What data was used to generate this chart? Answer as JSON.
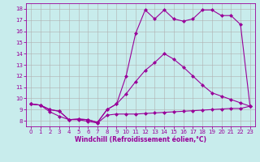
{
  "xlabel": "Windchill (Refroidissement éolien,°C)",
  "background_color": "#c8ecec",
  "line_color": "#990099",
  "xlim": [
    -0.5,
    23.5
  ],
  "ylim": [
    7.5,
    18.5
  ],
  "xticks": [
    0,
    1,
    2,
    3,
    4,
    5,
    6,
    7,
    8,
    9,
    10,
    11,
    12,
    13,
    14,
    15,
    16,
    17,
    18,
    19,
    20,
    21,
    22,
    23
  ],
  "yticks": [
    8,
    9,
    10,
    11,
    12,
    13,
    14,
    15,
    16,
    17,
    18
  ],
  "line1_x": [
    0,
    1,
    2,
    3,
    4,
    5,
    6,
    7,
    8,
    9,
    10,
    11,
    12,
    13,
    14,
    15,
    16,
    17,
    18,
    19,
    20,
    21,
    22,
    23
  ],
  "line1_y": [
    9.5,
    9.4,
    8.8,
    8.4,
    8.1,
    8.1,
    7.95,
    7.8,
    8.5,
    8.6,
    8.6,
    8.6,
    8.65,
    8.7,
    8.75,
    8.8,
    8.85,
    8.9,
    8.95,
    9.0,
    9.05,
    9.1,
    9.1,
    9.3
  ],
  "line2_x": [
    0,
    1,
    2,
    3,
    4,
    5,
    6,
    7,
    8,
    9,
    10,
    11,
    12,
    13,
    14,
    15,
    16,
    17,
    18,
    19,
    20,
    21,
    22,
    23
  ],
  "line2_y": [
    9.5,
    9.4,
    9.0,
    8.85,
    8.1,
    8.15,
    8.1,
    7.85,
    9.0,
    9.5,
    10.4,
    11.5,
    12.5,
    13.2,
    14.0,
    13.5,
    12.8,
    12.0,
    11.2,
    10.5,
    10.2,
    9.9,
    9.6,
    9.3
  ],
  "line3_x": [
    0,
    1,
    2,
    3,
    4,
    5,
    6,
    7,
    8,
    9,
    10,
    11,
    12,
    13,
    14,
    15,
    16,
    17,
    18,
    19,
    20,
    21,
    22,
    23
  ],
  "line3_y": [
    9.5,
    9.4,
    9.0,
    8.85,
    8.1,
    8.15,
    8.1,
    7.85,
    9.0,
    9.5,
    12.0,
    15.8,
    17.9,
    17.1,
    17.9,
    17.1,
    16.9,
    17.1,
    17.9,
    17.9,
    17.4,
    17.4,
    16.6,
    9.3
  ],
  "grid_color": "#b0b0b0",
  "marker": "D",
  "markersize": 2.5,
  "linewidth": 0.8,
  "tick_fontsize": 5.0,
  "xlabel_fontsize": 5.5
}
